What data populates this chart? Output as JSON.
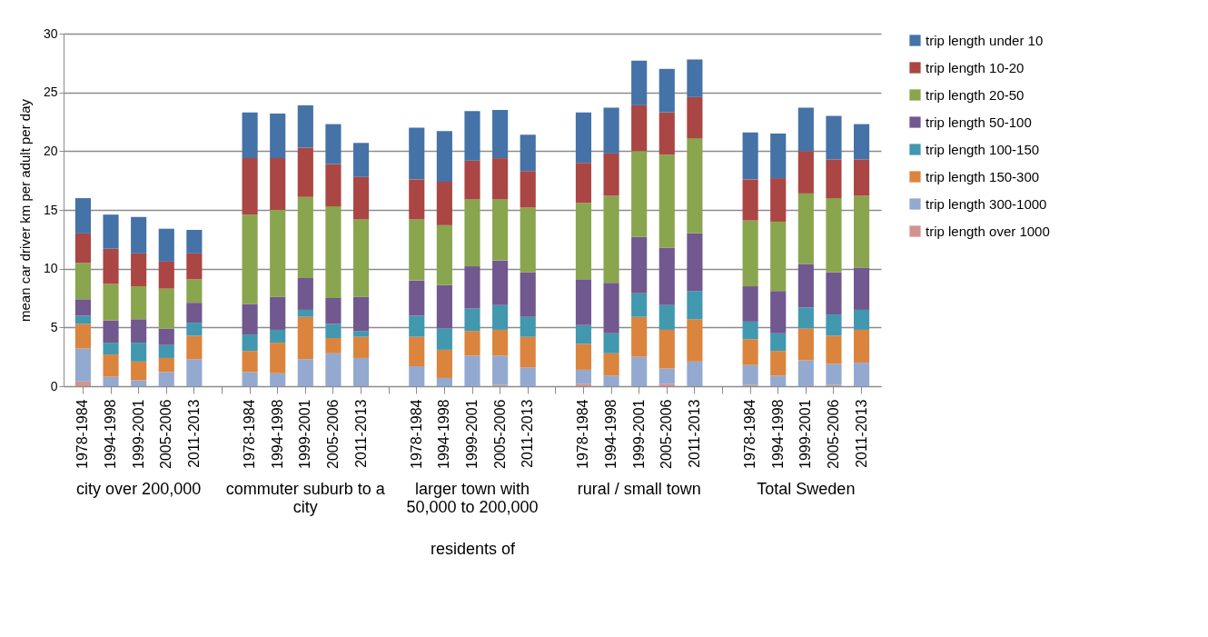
{
  "chart_data": {
    "type": "bar",
    "stacked": true,
    "ylabel": "mean car driver km per adult per day",
    "xlabel": "residents of",
    "categories": [
      "1978-1984",
      "1994-1998",
      "1999-2001",
      "2005-2006",
      "2011-2013",
      null,
      "1978-1984",
      "1994-1998",
      "1999-2001",
      "2005-2006",
      "2011-2013",
      null,
      "1978-1984",
      "1994-1998",
      "1999-2001",
      "2005-2006",
      "2011-2013",
      null,
      "1978-1984",
      "1994-1998",
      "1999-2001",
      "2005-2006",
      "2011-2013",
      null,
      "1978-1984",
      "1994-1998",
      "1999-2001",
      "2005-2006",
      "2011-2013"
    ],
    "annotations": [
      "city over 200,000",
      "commuter suburb to a city",
      "larger town with 50,000 to 200,000",
      "rural / small town",
      "Total Sweden"
    ],
    "series": [
      {
        "name": "trip length over 1000",
        "color": "#d19392",
        "values": [
          0.4,
          0,
          0,
          0,
          0,
          null,
          0,
          0,
          0,
          0,
          0,
          null,
          0,
          0,
          0,
          0.1,
          0,
          null,
          0.2,
          0,
          0,
          0.2,
          0,
          null,
          0.1,
          0,
          0,
          0.1,
          0
        ]
      },
      {
        "name": "trip length 300-1000",
        "color": "#93a9cf",
        "values": [
          2.8,
          0.8,
          0.5,
          1.2,
          2.3,
          null,
          1.2,
          1.1,
          2.3,
          2.8,
          2.4,
          null,
          1.7,
          0.7,
          2.6,
          2.5,
          1.6,
          null,
          1.2,
          0.9,
          2.5,
          1.3,
          2.1,
          null,
          1.7,
          0.9,
          2.2,
          1.8,
          2.0
        ]
      },
      {
        "name": "trip length 150-300",
        "color": "#db843d",
        "values": [
          2.1,
          1.9,
          1.6,
          1.2,
          2.0,
          null,
          1.8,
          2.6,
          3.6,
          1.3,
          1.8,
          null,
          2.5,
          2.4,
          2.1,
          2.2,
          2.6,
          null,
          2.2,
          1.9,
          3.4,
          3.3,
          3.6,
          null,
          2.2,
          2.1,
          2.7,
          2.4,
          2.8
        ]
      },
      {
        "name": "trip length 100-150",
        "color": "#4198af",
        "values": [
          0.7,
          1.0,
          1.6,
          1.1,
          1.1,
          null,
          1.4,
          1.1,
          0.6,
          1.2,
          0.5,
          null,
          1.8,
          1.8,
          1.9,
          2.1,
          1.7,
          null,
          1.6,
          1.7,
          2.0,
          2.1,
          2.4,
          null,
          1.5,
          1.5,
          1.8,
          1.8,
          1.7
        ]
      },
      {
        "name": "trip length 50-100",
        "color": "#71588f",
        "values": [
          1.4,
          1.9,
          2.0,
          1.4,
          1.7,
          null,
          2.6,
          2.8,
          2.7,
          2.2,
          2.9,
          null,
          3.0,
          3.7,
          3.6,
          3.8,
          3.8,
          null,
          3.9,
          4.3,
          4.8,
          4.9,
          4.9,
          null,
          3.0,
          3.6,
          3.7,
          3.6,
          3.6
        ]
      },
      {
        "name": "trip length 20-50",
        "color": "#89a54e",
        "values": [
          3.1,
          3.1,
          2.8,
          3.4,
          2.0,
          null,
          7.6,
          7.4,
          6.9,
          7.8,
          6.6,
          null,
          5.2,
          5.1,
          5.7,
          5.2,
          5.5,
          null,
          6.5,
          7.4,
          7.3,
          7.9,
          8.1,
          null,
          5.6,
          5.9,
          6.0,
          6.3,
          6.1
        ]
      },
      {
        "name": "trip length 10-20",
        "color": "#aa4643",
        "values": [
          2.5,
          3.0,
          2.8,
          2.3,
          2.2,
          null,
          4.8,
          4.4,
          4.2,
          3.6,
          3.6,
          null,
          3.4,
          3.7,
          3.3,
          3.5,
          3.1,
          null,
          3.4,
          3.6,
          3.9,
          3.6,
          3.5,
          null,
          3.5,
          3.7,
          3.6,
          3.3,
          3.1
        ]
      },
      {
        "name": "trip length under 10",
        "color": "#4572a7",
        "values": [
          3.0,
          2.9,
          3.1,
          2.8,
          2.0,
          null,
          3.9,
          3.8,
          3.6,
          3.4,
          2.9,
          null,
          4.4,
          4.3,
          4.2,
          4.1,
          3.1,
          null,
          4.3,
          3.9,
          3.8,
          3.7,
          3.2,
          null,
          4.0,
          3.8,
          3.7,
          3.7,
          3.0
        ]
      }
    ],
    "ylim": [
      0,
      30
    ],
    "yticks": [
      0,
      5,
      10,
      15,
      20,
      25,
      30
    ],
    "grid": "y",
    "legend": "right"
  }
}
